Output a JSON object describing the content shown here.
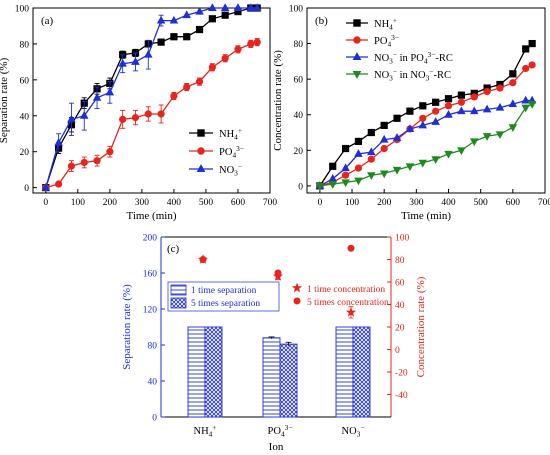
{
  "chart_data": [
    {
      "panel": "(a)",
      "type": "line",
      "xlabel": "Time (min)",
      "ylabel": "Separation rate (%)",
      "xlim": [
        -40,
        700
      ],
      "ylim": [
        -3,
        100
      ],
      "xticks": [
        0,
        100,
        200,
        300,
        400,
        500,
        600,
        700
      ],
      "yticks": [
        0,
        20,
        40,
        60,
        80,
        100
      ],
      "legend_position": "bottom-right",
      "series": [
        {
          "name": "NH4+",
          "color": "#000000",
          "marker": "square",
          "x": [
            0,
            40,
            80,
            120,
            160,
            200,
            240,
            280,
            320,
            360,
            400,
            440,
            480,
            520,
            560,
            600,
            640,
            660
          ],
          "y": [
            0,
            22,
            35,
            47,
            55,
            58,
            74,
            75,
            80,
            81,
            84,
            84,
            88,
            94,
            96,
            98,
            100,
            100
          ],
          "err": [
            1,
            3,
            4,
            3,
            3,
            3,
            2,
            2,
            1,
            1,
            1,
            1,
            1,
            1,
            1,
            1,
            1,
            1
          ]
        },
        {
          "name": "PO43-",
          "color": "#e8241c",
          "marker": "circle",
          "x": [
            0,
            40,
            80,
            120,
            160,
            200,
            240,
            280,
            320,
            360,
            400,
            440,
            480,
            520,
            560,
            600,
            640,
            660
          ],
          "y": [
            0,
            2,
            12,
            14,
            15,
            20,
            38,
            39,
            41,
            41,
            51,
            56,
            59,
            67,
            72,
            77,
            80,
            81
          ],
          "err": [
            1,
            1,
            3,
            3,
            3,
            3,
            5,
            4,
            4,
            5,
            2,
            2,
            2,
            2,
            2,
            2,
            2,
            2
          ]
        },
        {
          "name": "NO3-",
          "color": "#1f2fd6",
          "marker": "triangle-up",
          "x": [
            0,
            40,
            80,
            120,
            160,
            200,
            240,
            280,
            320,
            360,
            400,
            440,
            480,
            520,
            560,
            600,
            640,
            660
          ],
          "y": [
            0,
            25,
            38,
            40,
            50,
            53,
            69,
            70,
            74,
            93,
            93,
            96,
            98,
            100,
            100,
            100,
            100,
            100
          ],
          "err": [
            1,
            5,
            9,
            8,
            6,
            6,
            5,
            5,
            8,
            3,
            1,
            1,
            1,
            1,
            1,
            1,
            1,
            1
          ]
        }
      ]
    },
    {
      "panel": "(b)",
      "type": "line",
      "xlabel": "Time (min)",
      "ylabel": "Concentration rate (%)",
      "xlim": [
        -40,
        700
      ],
      "ylim": [
        -4,
        100
      ],
      "xticks": [
        0,
        100,
        200,
        300,
        400,
        500,
        600,
        700
      ],
      "yticks": [
        0,
        20,
        40,
        60,
        80,
        100
      ],
      "legend_position": "top-left",
      "series": [
        {
          "name": "NH4+",
          "color": "#000000",
          "marker": "square",
          "x": [
            0,
            40,
            80,
            120,
            160,
            200,
            240,
            280,
            320,
            360,
            400,
            440,
            480,
            520,
            560,
            600,
            640,
            660
          ],
          "y": [
            0,
            11,
            21,
            25,
            30,
            34,
            38,
            42,
            45,
            47,
            49,
            51,
            52,
            55,
            57,
            63,
            77,
            80
          ]
        },
        {
          "name": "PO43-",
          "color": "#e8241c",
          "marker": "circle",
          "x": [
            0,
            40,
            80,
            120,
            160,
            200,
            240,
            280,
            320,
            360,
            400,
            440,
            480,
            520,
            560,
            600,
            640,
            660
          ],
          "y": [
            0,
            2,
            6,
            10,
            15,
            21,
            26,
            32,
            38,
            42,
            45,
            47,
            50,
            53,
            55,
            58,
            66,
            68
          ]
        },
        {
          "name": "NO3- in PO43--RC",
          "color": "#1f2fd6",
          "marker": "triangle-up",
          "x": [
            0,
            40,
            80,
            120,
            160,
            200,
            240,
            280,
            320,
            360,
            400,
            440,
            480,
            520,
            560,
            600,
            640,
            660
          ],
          "y": [
            0,
            4,
            10,
            18,
            19,
            26,
            27,
            32,
            34,
            36,
            40,
            42,
            42,
            43,
            44,
            46,
            48,
            48
          ]
        },
        {
          "name": "NO3- in NO3--RC",
          "color": "#1f8a1f",
          "marker": "triangle-down",
          "x": [
            0,
            40,
            80,
            120,
            160,
            200,
            240,
            280,
            320,
            360,
            400,
            440,
            480,
            520,
            560,
            600,
            640,
            660
          ],
          "y": [
            0,
            1,
            2,
            3,
            6,
            7,
            9,
            11,
            13,
            15,
            18,
            20,
            25,
            28,
            29,
            33,
            44,
            46
          ]
        }
      ]
    },
    {
      "panel": "(c)",
      "type": "bar",
      "categories": [
        "NH4+",
        "PO43-",
        "NO3-"
      ],
      "xlabel": "Ion",
      "ylabel": "Separation rate (%)",
      "y2label": "Concentration rate (%)",
      "ylim": [
        0,
        200
      ],
      "y2lim": [
        -60,
        100
      ],
      "yticks": [
        0,
        40,
        80,
        120,
        160,
        200
      ],
      "y2ticks": [
        -40,
        -20,
        0,
        20,
        40,
        60,
        80,
        100
      ],
      "legend_position": "top",
      "series": [
        {
          "name": "1 time separation",
          "axis": "left",
          "color": "#1f2fd6",
          "pattern": "horizontal-lines",
          "values": [
            100,
            88,
            100
          ],
          "err": [
            0,
            1,
            0
          ]
        },
        {
          "name": "5 times separation",
          "axis": "left",
          "color": "#1f2fd6",
          "pattern": "crosshatch",
          "values": [
            100,
            81,
            100
          ],
          "err": [
            0,
            2,
            0
          ]
        },
        {
          "name": "1 time concentration",
          "axis": "right",
          "color": "#e8241c",
          "marker": "star",
          "values": [
            80,
            65,
            33
          ],
          "err": [
            2,
            3,
            5
          ]
        },
        {
          "name": "5 times concentration",
          "axis": "right",
          "color": "#e8241c",
          "marker": "circle",
          "values": [
            80,
            68,
            90
          ],
          "err": [
            2,
            2,
            0
          ]
        }
      ]
    }
  ]
}
